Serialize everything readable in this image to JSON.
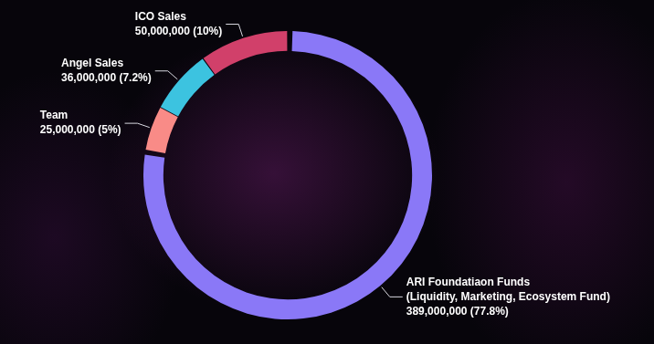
{
  "chart_data": {
    "type": "doughnut",
    "categories": [
      "ARI Foundatiaon Funds (Liquidity, Marketing, Ecosystem Fund)",
      "Team",
      "Angel Sales",
      "ICO Sales"
    ],
    "values": [
      389000000,
      25000000,
      36000000,
      50000000
    ],
    "value_labels": [
      "389,000,000 (77.8%)",
      "25,000,000 (5%)",
      "36,000,000 (7.2%)",
      "50,000,000 (10%)"
    ],
    "colors": [
      "#8a78f7",
      "#f98b87",
      "#3cc3e0",
      "#d1406a"
    ],
    "data_labels": true
  }
}
